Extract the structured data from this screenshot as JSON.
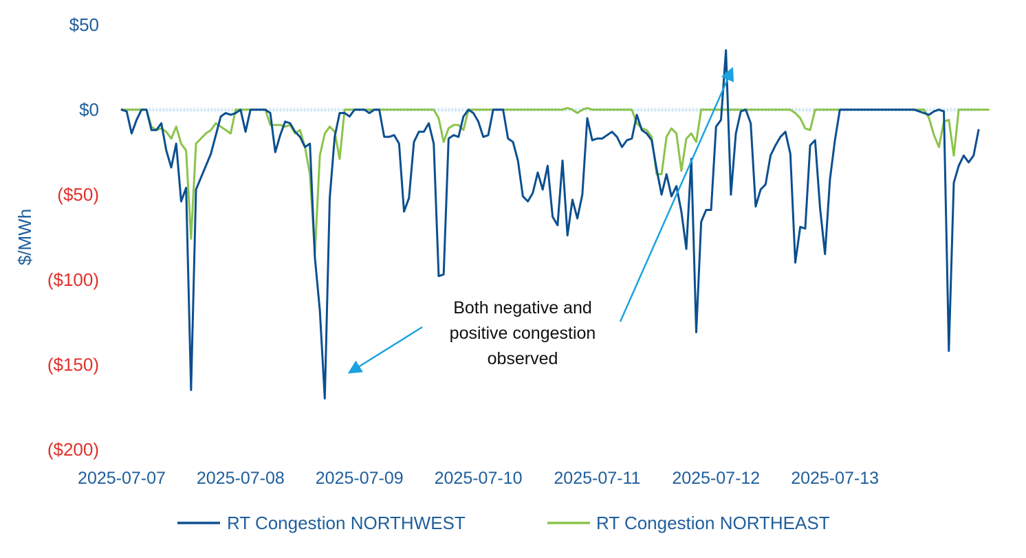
{
  "chart_data": {
    "type": "line",
    "title": "",
    "xlabel": "",
    "ylabel": "$/MWh",
    "ylim": [
      -200,
      50
    ],
    "y_ticks": [
      {
        "value": 50,
        "label": "$50",
        "negative": false
      },
      {
        "value": 0,
        "label": "$0",
        "negative": false
      },
      {
        "value": -50,
        "label": "($50)",
        "negative": true
      },
      {
        "value": -100,
        "label": "($100)",
        "negative": true
      },
      {
        "value": -150,
        "label": "($150)",
        "negative": true
      },
      {
        "value": -200,
        "label": "($200)",
        "negative": true
      }
    ],
    "x_ticks": [
      {
        "index": 0,
        "label": "2025-07-07"
      },
      {
        "index": 24,
        "label": "2025-07-08"
      },
      {
        "index": 48,
        "label": "2025-07-09"
      },
      {
        "index": 72,
        "label": "2025-07-10"
      },
      {
        "index": 96,
        "label": "2025-07-11"
      },
      {
        "index": 120,
        "label": "2025-07-12"
      },
      {
        "index": 144,
        "label": "2025-07-13"
      }
    ],
    "x_start": "2025-07-07 00:00",
    "x_interval": "1 hour",
    "grid": false,
    "legend_position": "bottom",
    "colors": {
      "northwest": "#0B4F8F",
      "northeast": "#8BC34A",
      "axis_text": "#1F5E9C",
      "negative_tick": "#E0302A",
      "zero_line": "#C9E3F5",
      "annotation_arrow": "#1AA3E0",
      "annotation_text": "#111111"
    },
    "series": [
      {
        "name": "RT Congestion NORTHWEST",
        "values": [
          0,
          -1,
          -14,
          -6,
          0,
          0,
          -12,
          -12,
          -8,
          -24,
          -34,
          -20,
          -54,
          -46,
          -165,
          -47,
          -40,
          -33,
          -26,
          -15,
          -4,
          -2,
          -3,
          -2,
          0,
          -13,
          0,
          0,
          0,
          0,
          -2,
          -25,
          -15,
          -7,
          -8,
          -13,
          -16,
          -22,
          -20,
          -87,
          -118,
          -170,
          -52,
          -16,
          -2,
          -2,
          -4,
          0,
          0,
          0,
          -2,
          0,
          0,
          -16,
          -16,
          -15,
          -20,
          -60,
          -52,
          -19,
          -13,
          -13,
          -8,
          -20,
          -98,
          -97,
          -17,
          -15,
          -16,
          -4,
          0,
          -2,
          -7,
          -16,
          -15,
          0,
          0,
          0,
          -17,
          -19,
          -30,
          -51,
          -54,
          -49,
          -37,
          -47,
          -33,
          -63,
          -68,
          -30,
          -74,
          -53,
          -64,
          -50,
          -5,
          -18,
          -17,
          -17,
          -15,
          -13,
          -16,
          -22,
          -18,
          -17,
          -3,
          -12,
          -14,
          -18,
          -35,
          -50,
          -38,
          -51,
          -45,
          -60,
          -82,
          -29,
          -131,
          -66,
          -59,
          -59,
          -10,
          -6,
          35,
          -50,
          -14,
          -1,
          0,
          -8,
          -57,
          -47,
          -44,
          -27,
          -21,
          -16,
          -13,
          -26,
          -90,
          -69,
          -70,
          -21,
          -18,
          -58,
          -85,
          -41,
          -18,
          0,
          0,
          0,
          0,
          0,
          0,
          0,
          0,
          0,
          0,
          0,
          0,
          0,
          0,
          0,
          0,
          -1,
          -2,
          -3,
          -1,
          0,
          -1,
          -142,
          -43,
          -33,
          -27,
          -31,
          -27,
          -12
        ]
      },
      {
        "name": "RT Congestion NORTHEAST",
        "values": [
          0,
          0,
          0,
          0,
          0,
          0,
          -10,
          -12,
          -11,
          -13,
          -17,
          -10,
          -20,
          -24,
          -76,
          -20,
          -17,
          -14,
          -12,
          -8,
          -10,
          -12,
          -14,
          0,
          0,
          0,
          0,
          0,
          0,
          0,
          -9,
          -9,
          -9,
          -10,
          -9,
          -14,
          -12,
          -22,
          -38,
          -85,
          -27,
          -14,
          -10,
          -13,
          -29,
          0,
          0,
          0,
          0,
          0,
          0,
          0,
          0,
          0,
          0,
          0,
          0,
          0,
          0,
          0,
          0,
          0,
          0,
          0,
          -5,
          -19,
          -11,
          -9,
          -9,
          -12,
          0,
          0,
          0,
          0,
          0,
          0,
          0,
          0,
          0,
          0,
          0,
          0,
          0,
          0,
          0,
          0,
          0,
          0,
          0,
          0,
          1,
          0,
          -2,
          0,
          1,
          0,
          0,
          0,
          0,
          0,
          0,
          0,
          0,
          0,
          -8,
          -11,
          -12,
          -16,
          -38,
          -38,
          -16,
          -11,
          -14,
          -36,
          -17,
          -14,
          -19,
          0,
          0,
          0,
          0,
          0,
          0,
          0,
          0,
          0,
          0,
          0,
          0,
          0,
          0,
          0,
          0,
          0,
          0,
          0,
          -2,
          -5,
          -11,
          -12,
          0,
          0,
          0,
          0,
          0,
          0,
          0,
          0,
          0,
          0,
          0,
          0,
          0,
          0,
          0,
          0,
          0,
          0,
          0,
          0,
          0,
          0,
          0,
          -5,
          -15,
          -22,
          -7,
          -6,
          -27,
          0,
          0,
          0,
          0,
          0,
          0,
          0
        ]
      }
    ],
    "annotation": {
      "lines": [
        "Both negative and",
        "positive congestion",
        "observed"
      ]
    }
  }
}
